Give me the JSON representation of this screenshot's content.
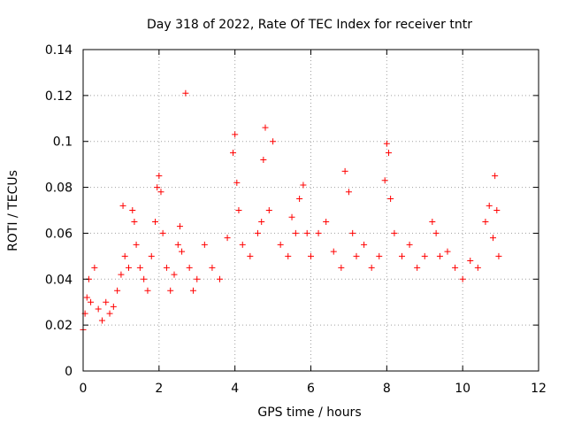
{
  "chart_data": {
    "type": "scatter",
    "title": "Day 318 of 2022, Rate Of TEC Index for receiver tntr",
    "xlabel": "GPS time / hours",
    "ylabel": "ROTI / TECUs",
    "xlim": [
      0,
      12
    ],
    "ylim": [
      0,
      0.14
    ],
    "x_ticks": [
      "0",
      "2",
      "4",
      "6",
      "8",
      "10",
      "12"
    ],
    "y_ticks": [
      "0",
      "0.02",
      "0.04",
      "0.06",
      "0.08",
      "0.1",
      "0.12",
      "0.14"
    ],
    "grid": true,
    "marker": "+",
    "marker_color": "#ff0000",
    "series": [
      {
        "x": [
          0.0,
          0.05,
          0.1,
          0.15,
          0.2,
          0.3,
          0.4,
          0.5,
          0.6,
          0.7,
          0.8,
          0.9,
          1.0,
          1.05,
          1.1,
          1.2,
          1.3,
          1.35,
          1.4,
          1.5,
          1.6,
          1.7,
          1.8,
          1.9,
          1.95,
          2.0,
          2.05,
          2.1,
          2.2,
          2.3,
          2.4,
          2.5,
          2.55,
          2.6,
          2.7,
          2.8,
          2.9,
          3.0,
          3.2,
          3.4,
          3.6,
          3.8,
          3.95,
          4.0,
          4.05,
          4.1,
          4.2,
          4.4,
          4.6,
          4.7,
          4.75,
          4.8,
          4.9,
          5.0,
          5.2,
          5.4,
          5.5,
          5.6,
          5.7,
          5.8,
          5.9,
          6.0,
          6.2,
          6.4,
          6.6,
          6.8,
          6.9,
          7.0,
          7.1,
          7.2,
          7.4,
          7.6,
          7.8,
          7.95,
          8.0,
          8.05,
          8.1,
          8.2,
          8.4,
          8.6,
          8.8,
          9.0,
          9.2,
          9.3,
          9.4,
          9.6,
          9.8,
          10.0,
          10.2,
          10.4,
          10.6,
          10.7,
          10.8,
          10.85,
          10.9,
          10.95
        ],
        "y": [
          0.018,
          0.025,
          0.032,
          0.04,
          0.03,
          0.045,
          0.027,
          0.022,
          0.03,
          0.025,
          0.028,
          0.035,
          0.042,
          0.072,
          0.05,
          0.045,
          0.07,
          0.065,
          0.055,
          0.045,
          0.04,
          0.035,
          0.05,
          0.065,
          0.08,
          0.085,
          0.078,
          0.06,
          0.045,
          0.035,
          0.042,
          0.055,
          0.063,
          0.052,
          0.121,
          0.045,
          0.035,
          0.04,
          0.055,
          0.045,
          0.04,
          0.058,
          0.095,
          0.103,
          0.082,
          0.07,
          0.055,
          0.05,
          0.06,
          0.065,
          0.092,
          0.106,
          0.07,
          0.1,
          0.055,
          0.05,
          0.067,
          0.06,
          0.075,
          0.081,
          0.06,
          0.05,
          0.06,
          0.065,
          0.052,
          0.045,
          0.087,
          0.078,
          0.06,
          0.05,
          0.055,
          0.045,
          0.05,
          0.083,
          0.099,
          0.095,
          0.075,
          0.06,
          0.05,
          0.055,
          0.045,
          0.05,
          0.065,
          0.06,
          0.05,
          0.052,
          0.045,
          0.04,
          0.048,
          0.045,
          0.065,
          0.072,
          0.058,
          0.085,
          0.07,
          0.05
        ]
      }
    ]
  }
}
